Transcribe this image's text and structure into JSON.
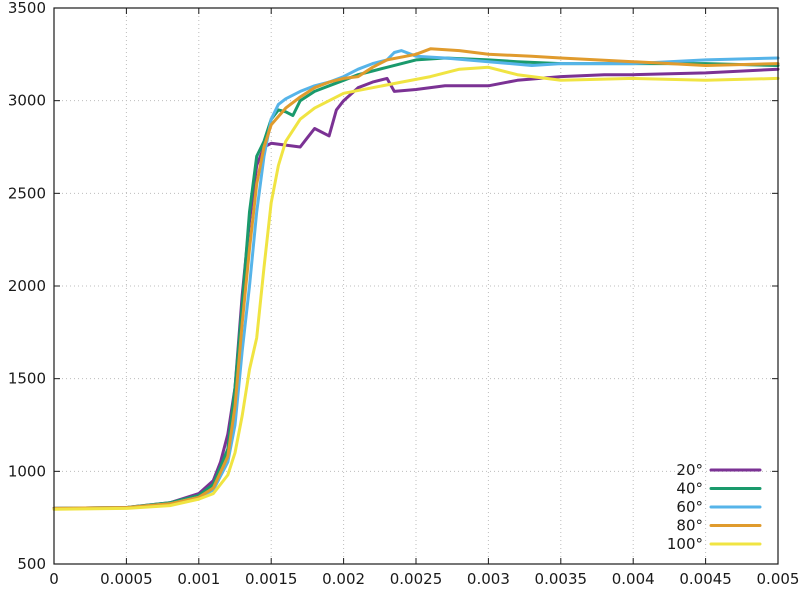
{
  "chart_data": {
    "type": "line",
    "title": "",
    "xlabel": "",
    "ylabel": "",
    "xlim": [
      0,
      0.005
    ],
    "ylim": [
      500,
      3500
    ],
    "grid": true,
    "legend_position": "bottom-right",
    "x_ticks": [
      "0",
      "0.0005",
      "0.001",
      "0.0015",
      "0.002",
      "0.0025",
      "0.003",
      "0.0035",
      "0.004",
      "0.0045",
      "0.005"
    ],
    "y_ticks": [
      "500",
      "1000",
      "1500",
      "2000",
      "2500",
      "3000",
      "3500"
    ],
    "series": [
      {
        "name": "20°",
        "color": "#7b3294",
        "points": [
          [
            0,
            800
          ],
          [
            0.0005,
            805
          ],
          [
            0.0008,
            830
          ],
          [
            0.001,
            880
          ],
          [
            0.0011,
            950
          ],
          [
            0.00115,
            1050
          ],
          [
            0.0012,
            1200
          ],
          [
            0.00125,
            1450
          ],
          [
            0.0013,
            1950
          ],
          [
            0.00135,
            2350
          ],
          [
            0.0014,
            2650
          ],
          [
            0.00145,
            2750
          ],
          [
            0.0015,
            2770
          ],
          [
            0.0016,
            2760
          ],
          [
            0.0017,
            2750
          ],
          [
            0.00175,
            2800
          ],
          [
            0.0018,
            2850
          ],
          [
            0.0019,
            2810
          ],
          [
            0.00195,
            2950
          ],
          [
            0.002,
            3000
          ],
          [
            0.0021,
            3070
          ],
          [
            0.0022,
            3100
          ],
          [
            0.0023,
            3120
          ],
          [
            0.00235,
            3050
          ],
          [
            0.0025,
            3060
          ],
          [
            0.0027,
            3080
          ],
          [
            0.003,
            3080
          ],
          [
            0.0032,
            3110
          ],
          [
            0.0035,
            3130
          ],
          [
            0.0038,
            3140
          ],
          [
            0.004,
            3140
          ],
          [
            0.0045,
            3150
          ],
          [
            0.005,
            3170
          ]
        ]
      },
      {
        "name": "40°",
        "color": "#1a9a6c",
        "points": [
          [
            0,
            800
          ],
          [
            0.0005,
            805
          ],
          [
            0.0008,
            830
          ],
          [
            0.001,
            870
          ],
          [
            0.0011,
            930
          ],
          [
            0.0012,
            1120
          ],
          [
            0.00125,
            1450
          ],
          [
            0.0013,
            1900
          ],
          [
            0.00135,
            2400
          ],
          [
            0.0014,
            2700
          ],
          [
            0.00145,
            2780
          ],
          [
            0.0015,
            2900
          ],
          [
            0.00155,
            2950
          ],
          [
            0.0016,
            2940
          ],
          [
            0.00165,
            2920
          ],
          [
            0.0017,
            3000
          ],
          [
            0.0018,
            3050
          ],
          [
            0.0019,
            3080
          ],
          [
            0.002,
            3110
          ],
          [
            0.0021,
            3140
          ],
          [
            0.0022,
            3160
          ],
          [
            0.0023,
            3180
          ],
          [
            0.0025,
            3220
          ],
          [
            0.0027,
            3230
          ],
          [
            0.003,
            3220
          ],
          [
            0.0032,
            3210
          ],
          [
            0.0035,
            3200
          ],
          [
            0.004,
            3200
          ],
          [
            0.0045,
            3200
          ],
          [
            0.005,
            3190
          ]
        ]
      },
      {
        "name": "60°",
        "color": "#56b4e9",
        "points": [
          [
            0,
            800
          ],
          [
            0.0005,
            805
          ],
          [
            0.0008,
            825
          ],
          [
            0.001,
            860
          ],
          [
            0.0011,
            900
          ],
          [
            0.0012,
            1050
          ],
          [
            0.00125,
            1250
          ],
          [
            0.0013,
            1650
          ],
          [
            0.00135,
            2000
          ],
          [
            0.0014,
            2400
          ],
          [
            0.00145,
            2700
          ],
          [
            0.0015,
            2900
          ],
          [
            0.00155,
            2980
          ],
          [
            0.0016,
            3010
          ],
          [
            0.0017,
            3050
          ],
          [
            0.0018,
            3080
          ],
          [
            0.0019,
            3100
          ],
          [
            0.002,
            3130
          ],
          [
            0.0021,
            3170
          ],
          [
            0.0022,
            3200
          ],
          [
            0.0023,
            3220
          ],
          [
            0.00235,
            3260
          ],
          [
            0.0024,
            3270
          ],
          [
            0.0025,
            3240
          ],
          [
            0.0027,
            3230
          ],
          [
            0.003,
            3210
          ],
          [
            0.0033,
            3190
          ],
          [
            0.0035,
            3200
          ],
          [
            0.004,
            3200
          ],
          [
            0.0045,
            3220
          ],
          [
            0.005,
            3230
          ]
        ]
      },
      {
        "name": "80°",
        "color": "#e09b2d",
        "points": [
          [
            0,
            800
          ],
          [
            0.0005,
            805
          ],
          [
            0.0008,
            825
          ],
          [
            0.001,
            860
          ],
          [
            0.0011,
            910
          ],
          [
            0.0012,
            1080
          ],
          [
            0.00125,
            1350
          ],
          [
            0.0013,
            1800
          ],
          [
            0.00135,
            2200
          ],
          [
            0.0014,
            2550
          ],
          [
            0.00145,
            2750
          ],
          [
            0.0015,
            2870
          ],
          [
            0.0016,
            2960
          ],
          [
            0.0017,
            3020
          ],
          [
            0.0018,
            3070
          ],
          [
            0.0019,
            3100
          ],
          [
            0.002,
            3120
          ],
          [
            0.0021,
            3130
          ],
          [
            0.0022,
            3180
          ],
          [
            0.0023,
            3220
          ],
          [
            0.0025,
            3250
          ],
          [
            0.0026,
            3280
          ],
          [
            0.0028,
            3270
          ],
          [
            0.003,
            3250
          ],
          [
            0.0033,
            3240
          ],
          [
            0.0035,
            3230
          ],
          [
            0.004,
            3210
          ],
          [
            0.0045,
            3190
          ],
          [
            0.005,
            3200
          ]
        ]
      },
      {
        "name": "100°",
        "color": "#f0e442",
        "points": [
          [
            0,
            795
          ],
          [
            0.0005,
            800
          ],
          [
            0.0008,
            815
          ],
          [
            0.001,
            850
          ],
          [
            0.0011,
            880
          ],
          [
            0.0012,
            980
          ],
          [
            0.00125,
            1100
          ],
          [
            0.0013,
            1300
          ],
          [
            0.00135,
            1550
          ],
          [
            0.0014,
            1720
          ],
          [
            0.00145,
            2100
          ],
          [
            0.0015,
            2450
          ],
          [
            0.00155,
            2650
          ],
          [
            0.0016,
            2780
          ],
          [
            0.0017,
            2900
          ],
          [
            0.0018,
            2960
          ],
          [
            0.0019,
            3000
          ],
          [
            0.002,
            3040
          ],
          [
            0.0022,
            3070
          ],
          [
            0.0024,
            3100
          ],
          [
            0.0026,
            3130
          ],
          [
            0.0028,
            3170
          ],
          [
            0.003,
            3180
          ],
          [
            0.0032,
            3140
          ],
          [
            0.0035,
            3110
          ],
          [
            0.004,
            3120
          ],
          [
            0.0045,
            3110
          ],
          [
            0.005,
            3120
          ]
        ]
      }
    ]
  }
}
